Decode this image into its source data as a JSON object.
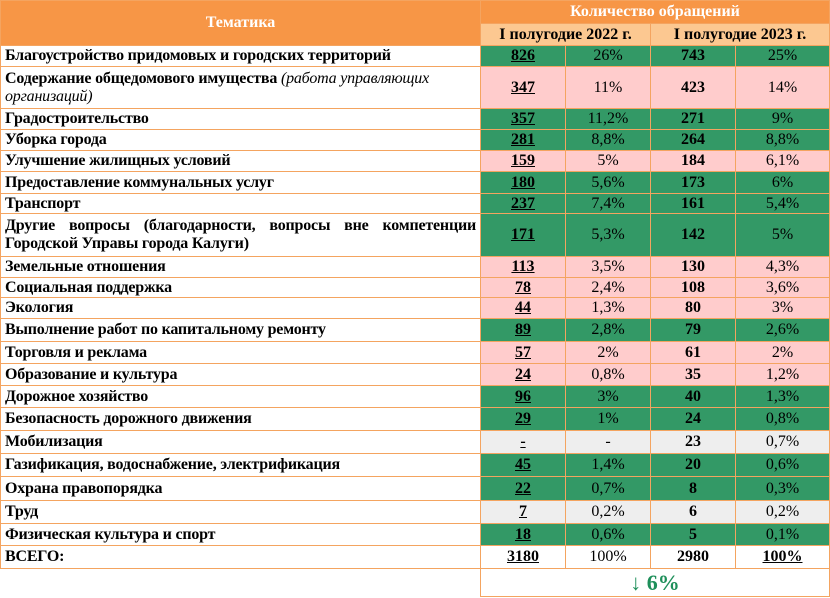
{
  "header": {
    "topic": "Тематика",
    "count": "Количество обращений",
    "period_2022": "I полугодие 2022 г.",
    "period_2023": "I полугодие 2023 г."
  },
  "colors": {
    "header": "#f79646",
    "subheader": "#fcc891",
    "increase_green": "#339966",
    "pink": "#ffcccc",
    "grey": "#eeeeee"
  },
  "rows": [
    {
      "topic": "Благоустройство придомовых и городских территорий",
      "c2022": "826",
      "p2022": "26%",
      "c2023": "743",
      "p2023": "25%",
      "color": "green"
    },
    {
      "topic": "Содержание общедомового имущества",
      "note": "(работа управляющих организаций)",
      "c2022": "347",
      "p2022": "11%",
      "c2023": "423",
      "p2023": "14%",
      "color": "pink"
    },
    {
      "topic": "Градостроительство",
      "c2022": "357",
      "p2022": "11,2%",
      "c2023": "271",
      "p2023": "9%",
      "color": "green"
    },
    {
      "topic": "Уборка города",
      "c2022": "281",
      "p2022": "8,8%",
      "c2023": "264",
      "p2023": "8,8%",
      "color": "green"
    },
    {
      "topic": "Улучшение жилищных условий",
      "c2022": "159",
      "p2022": "5%",
      "c2023": "184",
      "p2023": "6,1%",
      "color": "pink"
    },
    {
      "topic": "Предоставление коммунальных услуг",
      "c2022": "180",
      "p2022": "5,6%",
      "c2023": "173",
      "p2023": "6%",
      "color": "green"
    },
    {
      "topic": "Транспорт",
      "c2022": "237",
      "p2022": "7,4%",
      "c2023": "161",
      "p2023": "5,4%",
      "color": "green"
    },
    {
      "topic": "Другие вопросы (благодарности, вопросы вне компетенции Городской Управы города Калуги)",
      "c2022": "171",
      "p2022": "5,3%",
      "c2023": "142",
      "p2023": "5%",
      "color": "green"
    },
    {
      "topic": "Земельные отношения",
      "c2022": "113",
      "p2022": "3,5%",
      "c2023": "130",
      "p2023": "4,3%",
      "color": "pink"
    },
    {
      "topic": "Социальная поддержка",
      "c2022": "78",
      "p2022": "2,4%",
      "c2023": "108",
      "p2023": "3,6%",
      "color": "pink"
    },
    {
      "topic": "Экология",
      "c2022": "44",
      "p2022": "1,3%",
      "c2023": "80",
      "p2023": "3%",
      "color": "pink"
    },
    {
      "topic": "Выполнение работ по капитальному ремонту",
      "c2022": "89",
      "p2022": "2,8%",
      "c2023": "79",
      "p2023": "2,6%",
      "color": "green"
    },
    {
      "topic": "Торговля и реклама",
      "c2022": "57",
      "p2022": "2%",
      "c2023": "61",
      "p2023": "2%",
      "color": "pink"
    },
    {
      "topic": "Образование и культура",
      "c2022": "24",
      "p2022": "0,8%",
      "c2023": "35",
      "p2023": "1,2%",
      "color": "pink"
    },
    {
      "topic": "Дорожное хозяйство",
      "c2022": "96",
      "p2022": "3%",
      "c2023": "40",
      "p2023": "1,3%",
      "color": "green"
    },
    {
      "topic": "Безопасность дорожного движения",
      "c2022": "29",
      "p2022": "1%",
      "c2023": "24",
      "p2023": "0,8%",
      "color": "green"
    },
    {
      "topic": "Мобилизация",
      "c2022": "-",
      "p2022": "-",
      "c2023": "23",
      "p2023": "0,7%",
      "color": "grey"
    },
    {
      "topic": "Газификация, водоснабжение, электрификация",
      "c2022": "45",
      "p2022": "1,4%",
      "c2023": "20",
      "p2023": "0,6%",
      "color": "green"
    },
    {
      "topic": "Охрана правопорядка",
      "c2022": "22",
      "p2022": "0,7%",
      "c2023": "8",
      "p2023": "0,3%",
      "color": "green"
    },
    {
      "topic": "Труд",
      "c2022": "7",
      "p2022": "0,2%",
      "c2023": "6",
      "p2023": "0,2%",
      "color": "grey"
    },
    {
      "topic": "Физическая культура и спорт",
      "c2022": "18",
      "p2022": "0,6%",
      "c2023": "5",
      "p2023": "0,1%",
      "color": "green"
    }
  ],
  "total": {
    "label": "ВСЕГО:",
    "c2022": "3180",
    "p2022": "100%",
    "c2023": "2980",
    "p2023": "100%"
  },
  "change": "↓ 6%"
}
